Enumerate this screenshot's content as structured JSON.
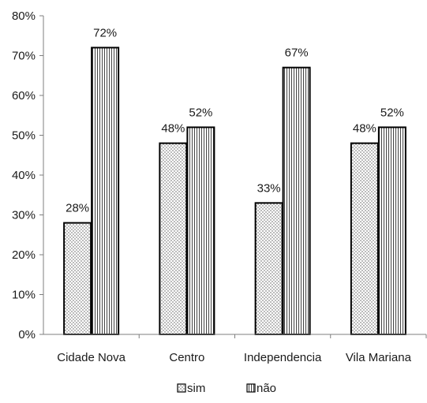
{
  "chart_data": {
    "type": "bar",
    "title": "",
    "xlabel": "",
    "ylabel": "",
    "categories": [
      "Cidade Nova",
      "Centro",
      "Independencia",
      "Vila Mariana"
    ],
    "series": [
      {
        "name": "sim",
        "values": [
          28,
          48,
          33,
          48
        ],
        "labels": [
          "28%",
          "48%",
          "33%",
          "48%"
        ],
        "pattern": "dots"
      },
      {
        "name": "não",
        "values": [
          72,
          52,
          67,
          52
        ],
        "labels": [
          "72%",
          "52%",
          "67%",
          "52%"
        ],
        "pattern": "vertical-lines"
      }
    ],
    "ylim": [
      0,
      80
    ],
    "yticks": [
      0,
      10,
      20,
      30,
      40,
      50,
      60,
      70,
      80
    ],
    "ytick_labels": [
      "0%",
      "10%",
      "20%",
      "30%",
      "40%",
      "50%",
      "60%",
      "70%",
      "80%"
    ],
    "grid": false,
    "legend_position": "bottom-center",
    "colors": {
      "bar_fill": "#ffffff",
      "bar_stroke": "#000000",
      "axis": "#7f7f7f",
      "pattern_ink": "#555555"
    }
  }
}
